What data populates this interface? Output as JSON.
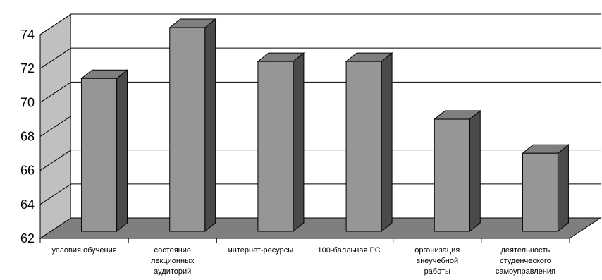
{
  "chart_data": {
    "type": "bar",
    "style": "3d",
    "categories": [
      [
        "условия обучения"
      ],
      [
        "состояние",
        "лекционных",
        "аудиторий"
      ],
      [
        "интернет-ресурсы"
      ],
      [
        "100-балльная РС"
      ],
      [
        "организация",
        "внеучебной",
        "работы"
      ],
      [
        "деятельность",
        "студенческого",
        "самоуправления"
      ]
    ],
    "values": [
      71,
      74,
      72,
      72,
      68.6,
      66.6
    ],
    "ylim": [
      62,
      74
    ],
    "yticks": [
      62,
      64,
      66,
      68,
      70,
      72,
      74
    ],
    "grid": true,
    "colors": {
      "bar_front": "#969696",
      "bar_top": "#7f7f7f",
      "bar_side": "#4a4a4a",
      "wall": "#c0c0c0",
      "floor": "#7f7f7f",
      "outline": "#000000"
    }
  }
}
